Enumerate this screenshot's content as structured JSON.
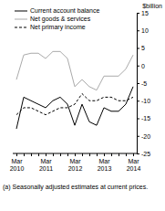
{
  "chart_data": {
    "type": "line",
    "y_label": "$billion",
    "footnote": "(a) Seasonally adjusted estimates at current prices.",
    "categories": [
      "Mar 2010",
      null,
      null,
      null,
      "Mar 2011",
      null,
      null,
      null,
      "Mar 2012",
      null,
      null,
      null,
      "Mar 2013",
      null,
      null,
      null,
      "Mar 2014"
    ],
    "series": [
      {
        "name": "Current account balance",
        "color": "#000000",
        "line_style": "solid",
        "values": [
          -18,
          -9,
          -10,
          -11,
          -12,
          -10,
          -9,
          -11,
          -17,
          -11,
          -16,
          -17,
          -12,
          -13,
          -13,
          -11,
          -6
        ]
      },
      {
        "name": "Net goods & services",
        "color": "#aaaaaa",
        "line_style": "solid",
        "values": [
          -4,
          3,
          3.5,
          3.5,
          2,
          4,
          4,
          2,
          -6,
          -4,
          -6,
          -7,
          -3,
          -3,
          -3,
          -1,
          3
        ]
      },
      {
        "name": "Net primary income",
        "color": "#000000",
        "line_style": "dashed",
        "values": [
          -14,
          -12,
          -12,
          -13,
          -14,
          -13,
          -12,
          -12,
          -11,
          -8,
          -10,
          -10,
          -9,
          -9,
          -10,
          -10,
          -9
        ]
      }
    ],
    "ylim": [
      -25,
      15
    ],
    "yticks": [
      -25,
      -20,
      -15,
      -10,
      -5,
      0,
      5,
      10,
      15
    ],
    "legend": "top-left"
  }
}
